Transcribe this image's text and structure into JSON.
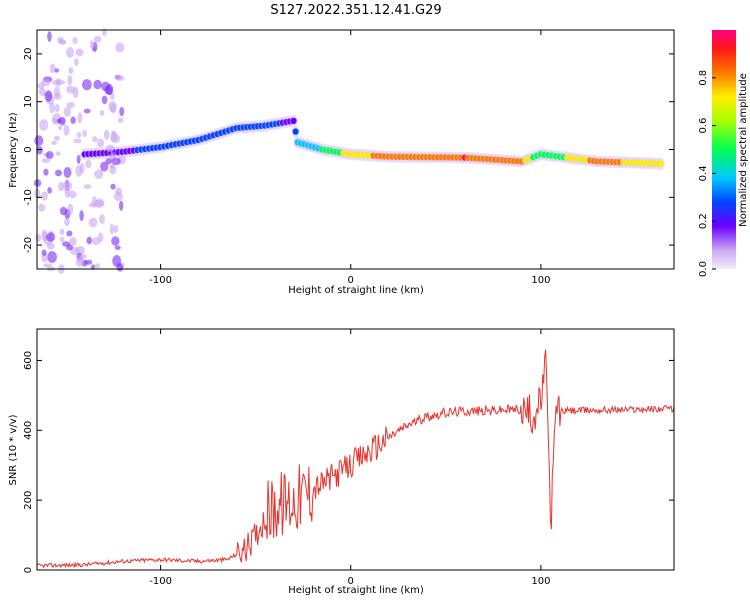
{
  "title": "S127.2022.351.12.41.G29",
  "chart_data": [
    {
      "type": "heatmap",
      "title": "S127.2022.351.12.41.G29",
      "xlabel": "Height of straight line (km)",
      "ylabel": "Frequency (Hz)",
      "xlim": [
        -165,
        170
      ],
      "ylim": [
        -25,
        25
      ],
      "x_ticks": [
        -100,
        0,
        100
      ],
      "y_ticks": [
        -20,
        -10,
        0,
        10,
        20
      ],
      "colorbar": {
        "label": "Normalized spectral amplitude",
        "range": [
          0.0,
          1.0
        ],
        "ticks": [
          0.0,
          0.2,
          0.4,
          0.6,
          0.8
        ]
      },
      "ridge": [
        {
          "x": -140,
          "y": -1.0,
          "a": 0.35
        },
        {
          "x": -120,
          "y": -0.5,
          "a": 0.4
        },
        {
          "x": -100,
          "y": 0.5,
          "a": 0.45
        },
        {
          "x": -80,
          "y": 2.0,
          "a": 0.45
        },
        {
          "x": -60,
          "y": 4.5,
          "a": 0.5
        },
        {
          "x": -45,
          "y": 5.0,
          "a": 0.45
        },
        {
          "x": -30,
          "y": 6.0,
          "a": 0.4
        },
        {
          "x": -28,
          "y": 1.5,
          "a": 0.55
        },
        {
          "x": -15,
          "y": 0.0,
          "a": 0.7
        },
        {
          "x": 0,
          "y": -1.0,
          "a": 0.85
        },
        {
          "x": 20,
          "y": -1.5,
          "a": 0.95
        },
        {
          "x": 60,
          "y": -1.7,
          "a": 1.0
        },
        {
          "x": 90,
          "y": -2.5,
          "a": 0.9
        },
        {
          "x": 100,
          "y": -1.0,
          "a": 0.7
        },
        {
          "x": 130,
          "y": -2.5,
          "a": 0.95
        },
        {
          "x": 165,
          "y": -3.0,
          "a": 0.8
        }
      ]
    },
    {
      "type": "line",
      "xlabel": "Height of straight line (km)",
      "ylabel": "SNR (10 * v/v)",
      "xlim": [
        -165,
        170
      ],
      "ylim": [
        0,
        690
      ],
      "x_ticks": [
        -100,
        0,
        100
      ],
      "y_ticks": [
        0,
        200,
        400,
        600
      ],
      "color": "#e8332e",
      "series": [
        {
          "x": [
            -165,
            -140,
            -120,
            -100,
            -80,
            -65,
            -55,
            -50,
            -45,
            -40,
            -30,
            -20,
            -10,
            0,
            10,
            20,
            30,
            40,
            50,
            60,
            70,
            80,
            90,
            95,
            100,
            103,
            105,
            108,
            110,
            130,
            150,
            170
          ],
          "values": [
            12,
            15,
            25,
            30,
            25,
            30,
            60,
            100,
            150,
            180,
            200,
            230,
            265,
            300,
            340,
            380,
            415,
            440,
            450,
            455,
            455,
            458,
            460,
            440,
            480,
            600,
            120,
            460,
            455,
            458,
            460,
            462
          ]
        }
      ]
    }
  ]
}
